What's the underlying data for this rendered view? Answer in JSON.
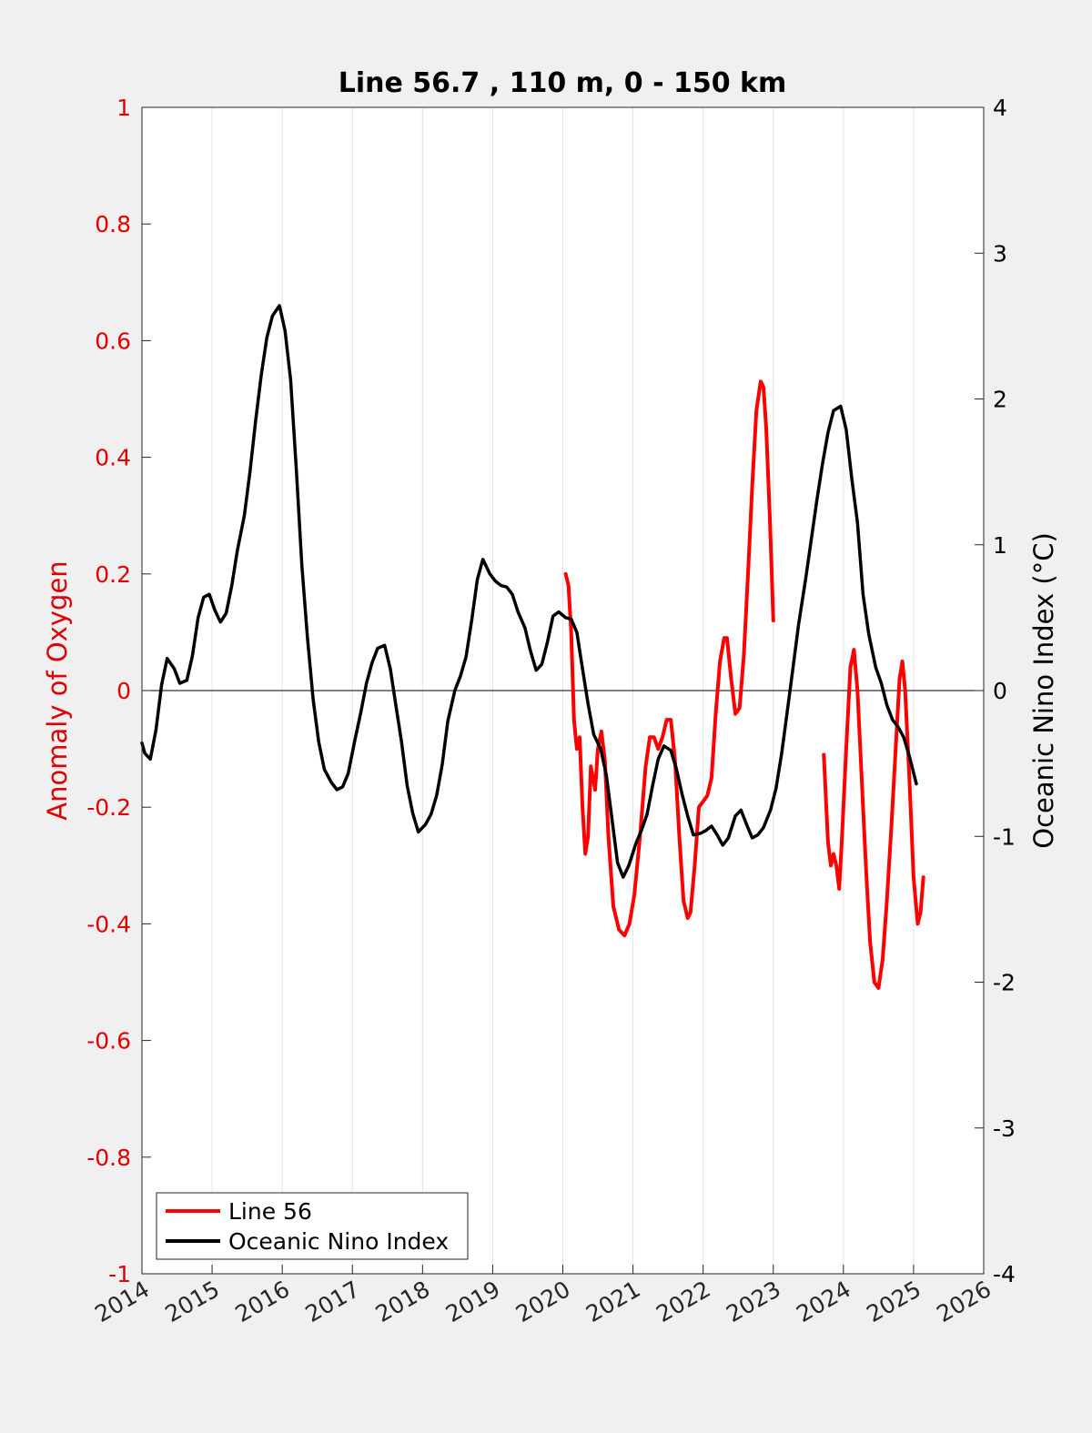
{
  "chart_data": {
    "type": "line",
    "title": "Line 56.7 , 110 m, 0 - 150 km",
    "xlabel": "",
    "ylabel": "Anomaly of Oxygen",
    "ylabel_right": "Oceanic Nino Index (°C)",
    "xlim": [
      2014,
      2026
    ],
    "ylim": [
      -1,
      1
    ],
    "ylim_right": [
      -4,
      4
    ],
    "x_ticks": [
      2014,
      2015,
      2016,
      2017,
      2018,
      2019,
      2020,
      2021,
      2022,
      2023,
      2024,
      2025,
      2026
    ],
    "y_ticks": [
      "-1",
      "-0.8",
      "-0.6",
      "-0.4",
      "-0.2",
      "0",
      "0.2",
      "0.4",
      "0.6",
      "0.8",
      "1"
    ],
    "y_ticks_right": [
      "-4",
      "-3",
      "-2",
      "-1",
      "0",
      "1",
      "2",
      "3",
      "4"
    ],
    "grid": "vertical",
    "zero_line": true,
    "legend_position": "bottom-left",
    "colors": {
      "line56": "#ff0000",
      "oni": "#000000",
      "left_axis": "#e00000",
      "right_axis": "#000000"
    },
    "series": [
      {
        "name": "Line 56",
        "axis": "left",
        "color": "#ff0000",
        "segments": [
          [
            [
              2020.04,
              0.2
            ],
            [
              2020.08,
              0.18
            ],
            [
              2020.12,
              0.1
            ],
            [
              2020.16,
              -0.05
            ],
            [
              2020.2,
              -0.1
            ],
            [
              2020.24,
              -0.08
            ],
            [
              2020.28,
              -0.2
            ],
            [
              2020.32,
              -0.28
            ],
            [
              2020.36,
              -0.25
            ],
            [
              2020.4,
              -0.13
            ],
            [
              2020.46,
              -0.17
            ],
            [
              2020.5,
              -0.1
            ],
            [
              2020.55,
              -0.07
            ],
            [
              2020.6,
              -0.12
            ],
            [
              2020.65,
              -0.25
            ],
            [
              2020.72,
              -0.37
            ],
            [
              2020.8,
              -0.41
            ],
            [
              2020.88,
              -0.42
            ],
            [
              2020.95,
              -0.4
            ],
            [
              2021.02,
              -0.35
            ],
            [
              2021.1,
              -0.25
            ],
            [
              2021.18,
              -0.13
            ],
            [
              2021.24,
              -0.08
            ],
            [
              2021.3,
              -0.08
            ],
            [
              2021.36,
              -0.1
            ],
            [
              2021.42,
              -0.08
            ],
            [
              2021.48,
              -0.05
            ],
            [
              2021.54,
              -0.05
            ],
            [
              2021.6,
              -0.12
            ],
            [
              2021.66,
              -0.25
            ],
            [
              2021.72,
              -0.36
            ],
            [
              2021.78,
              -0.39
            ],
            [
              2021.82,
              -0.38
            ],
            [
              2021.88,
              -0.3
            ],
            [
              2021.94,
              -0.2
            ],
            [
              2022.0,
              -0.19
            ],
            [
              2022.06,
              -0.18
            ],
            [
              2022.12,
              -0.15
            ],
            [
              2022.18,
              -0.04
            ],
            [
              2022.24,
              0.05
            ],
            [
              2022.3,
              0.09
            ],
            [
              2022.34,
              0.09
            ],
            [
              2022.4,
              0.02
            ],
            [
              2022.46,
              -0.04
            ],
            [
              2022.52,
              -0.03
            ],
            [
              2022.58,
              0.06
            ],
            [
              2022.64,
              0.2
            ],
            [
              2022.7,
              0.35
            ],
            [
              2022.76,
              0.48
            ],
            [
              2022.82,
              0.53
            ],
            [
              2022.86,
              0.52
            ],
            [
              2022.9,
              0.45
            ],
            [
              2022.95,
              0.3
            ],
            [
              2023.0,
              0.12
            ]
          ],
          [
            [
              2023.72,
              -0.11
            ],
            [
              2023.78,
              -0.26
            ],
            [
              2023.82,
              -0.3
            ],
            [
              2023.86,
              -0.28
            ],
            [
              2023.9,
              -0.3
            ],
            [
              2023.94,
              -0.34
            ],
            [
              2023.98,
              -0.25
            ],
            [
              2024.04,
              -0.1
            ],
            [
              2024.1,
              0.04
            ],
            [
              2024.15,
              0.07
            ],
            [
              2024.2,
              0.0
            ],
            [
              2024.26,
              -0.15
            ],
            [
              2024.32,
              -0.3
            ],
            [
              2024.38,
              -0.43
            ],
            [
              2024.44,
              -0.5
            ],
            [
              2024.5,
              -0.51
            ],
            [
              2024.56,
              -0.46
            ],
            [
              2024.62,
              -0.36
            ],
            [
              2024.68,
              -0.24
            ],
            [
              2024.74,
              -0.11
            ],
            [
              2024.8,
              0.02
            ],
            [
              2024.84,
              0.05
            ],
            [
              2024.88,
              0.0
            ],
            [
              2024.94,
              -0.15
            ],
            [
              2025.0,
              -0.32
            ],
            [
              2025.06,
              -0.4
            ],
            [
              2025.1,
              -0.38
            ],
            [
              2025.14,
              -0.32
            ]
          ]
        ]
      },
      {
        "name": "Oceanic Nino Index",
        "axis": "right",
        "color": "#000000",
        "points": [
          [
            2014.0,
            -0.36
          ],
          [
            2014.04,
            -0.43
          ],
          [
            2014.12,
            -0.47
          ],
          [
            2014.2,
            -0.27
          ],
          [
            2014.28,
            0.04
          ],
          [
            2014.36,
            0.22
          ],
          [
            2014.46,
            0.15
          ],
          [
            2014.54,
            0.05
          ],
          [
            2014.64,
            0.07
          ],
          [
            2014.72,
            0.24
          ],
          [
            2014.8,
            0.5
          ],
          [
            2014.88,
            0.64
          ],
          [
            2014.96,
            0.66
          ],
          [
            2015.04,
            0.55
          ],
          [
            2015.12,
            0.47
          ],
          [
            2015.2,
            0.53
          ],
          [
            2015.28,
            0.72
          ],
          [
            2015.36,
            0.96
          ],
          [
            2015.46,
            1.2
          ],
          [
            2015.54,
            1.5
          ],
          [
            2015.62,
            1.85
          ],
          [
            2015.7,
            2.16
          ],
          [
            2015.78,
            2.42
          ],
          [
            2015.86,
            2.57
          ],
          [
            2015.96,
            2.64
          ],
          [
            2016.04,
            2.47
          ],
          [
            2016.12,
            2.13
          ],
          [
            2016.2,
            1.52
          ],
          [
            2016.28,
            0.86
          ],
          [
            2016.36,
            0.36
          ],
          [
            2016.44,
            -0.06
          ],
          [
            2016.52,
            -0.35
          ],
          [
            2016.6,
            -0.54
          ],
          [
            2016.7,
            -0.63
          ],
          [
            2016.78,
            -0.68
          ],
          [
            2016.86,
            -0.66
          ],
          [
            2016.94,
            -0.57
          ],
          [
            2017.04,
            -0.33
          ],
          [
            2017.12,
            -0.15
          ],
          [
            2017.2,
            0.05
          ],
          [
            2017.28,
            0.19
          ],
          [
            2017.36,
            0.29
          ],
          [
            2017.46,
            0.31
          ],
          [
            2017.54,
            0.15
          ],
          [
            2017.62,
            -0.1
          ],
          [
            2017.7,
            -0.35
          ],
          [
            2017.78,
            -0.65
          ],
          [
            2017.86,
            -0.84
          ],
          [
            2017.94,
            -0.97
          ],
          [
            2018.04,
            -0.92
          ],
          [
            2018.12,
            -0.85
          ],
          [
            2018.2,
            -0.72
          ],
          [
            2018.28,
            -0.51
          ],
          [
            2018.36,
            -0.21
          ],
          [
            2018.46,
            0.0
          ],
          [
            2018.54,
            0.1
          ],
          [
            2018.62,
            0.23
          ],
          [
            2018.7,
            0.48
          ],
          [
            2018.78,
            0.76
          ],
          [
            2018.86,
            0.9
          ],
          [
            2018.96,
            0.8
          ],
          [
            2019.04,
            0.75
          ],
          [
            2019.12,
            0.72
          ],
          [
            2019.2,
            0.71
          ],
          [
            2019.28,
            0.66
          ],
          [
            2019.36,
            0.54
          ],
          [
            2019.46,
            0.43
          ],
          [
            2019.54,
            0.27
          ],
          [
            2019.62,
            0.14
          ],
          [
            2019.7,
            0.18
          ],
          [
            2019.78,
            0.33
          ],
          [
            2019.86,
            0.51
          ],
          [
            2019.94,
            0.54
          ],
          [
            2020.04,
            0.5
          ],
          [
            2020.12,
            0.49
          ],
          [
            2020.2,
            0.4
          ],
          [
            2020.28,
            0.15
          ],
          [
            2020.36,
            -0.09
          ],
          [
            2020.44,
            -0.3
          ],
          [
            2020.54,
            -0.4
          ],
          [
            2020.62,
            -0.58
          ],
          [
            2020.7,
            -0.88
          ],
          [
            2020.78,
            -1.18
          ],
          [
            2020.86,
            -1.28
          ],
          [
            2020.94,
            -1.2
          ],
          [
            2021.04,
            -1.05
          ],
          [
            2021.12,
            -0.96
          ],
          [
            2021.2,
            -0.85
          ],
          [
            2021.28,
            -0.65
          ],
          [
            2021.36,
            -0.47
          ],
          [
            2021.44,
            -0.38
          ],
          [
            2021.54,
            -0.41
          ],
          [
            2021.62,
            -0.54
          ],
          [
            2021.7,
            -0.71
          ],
          [
            2021.78,
            -0.86
          ],
          [
            2021.86,
            -0.99
          ],
          [
            2021.96,
            -0.98
          ],
          [
            2022.04,
            -0.96
          ],
          [
            2022.12,
            -0.93
          ],
          [
            2022.2,
            -0.99
          ],
          [
            2022.28,
            -1.06
          ],
          [
            2022.36,
            -1.01
          ],
          [
            2022.46,
            -0.86
          ],
          [
            2022.54,
            -0.82
          ],
          [
            2022.62,
            -0.92
          ],
          [
            2022.7,
            -1.01
          ],
          [
            2022.78,
            -0.99
          ],
          [
            2022.86,
            -0.94
          ],
          [
            2022.96,
            -0.82
          ],
          [
            2023.04,
            -0.67
          ],
          [
            2023.12,
            -0.43
          ],
          [
            2023.2,
            -0.14
          ],
          [
            2023.28,
            0.15
          ],
          [
            2023.36,
            0.45
          ],
          [
            2023.46,
            0.76
          ],
          [
            2023.54,
            1.03
          ],
          [
            2023.62,
            1.3
          ],
          [
            2023.7,
            1.55
          ],
          [
            2023.78,
            1.77
          ],
          [
            2023.86,
            1.92
          ],
          [
            2023.96,
            1.95
          ],
          [
            2024.04,
            1.79
          ],
          [
            2024.12,
            1.45
          ],
          [
            2024.2,
            1.15
          ],
          [
            2024.28,
            0.66
          ],
          [
            2024.36,
            0.39
          ],
          [
            2024.46,
            0.16
          ],
          [
            2024.54,
            0.05
          ],
          [
            2024.62,
            -0.1
          ],
          [
            2024.7,
            -0.2
          ],
          [
            2024.78,
            -0.25
          ],
          [
            2024.86,
            -0.32
          ],
          [
            2024.94,
            -0.45
          ],
          [
            2025.04,
            -0.64
          ]
        ]
      }
    ]
  }
}
